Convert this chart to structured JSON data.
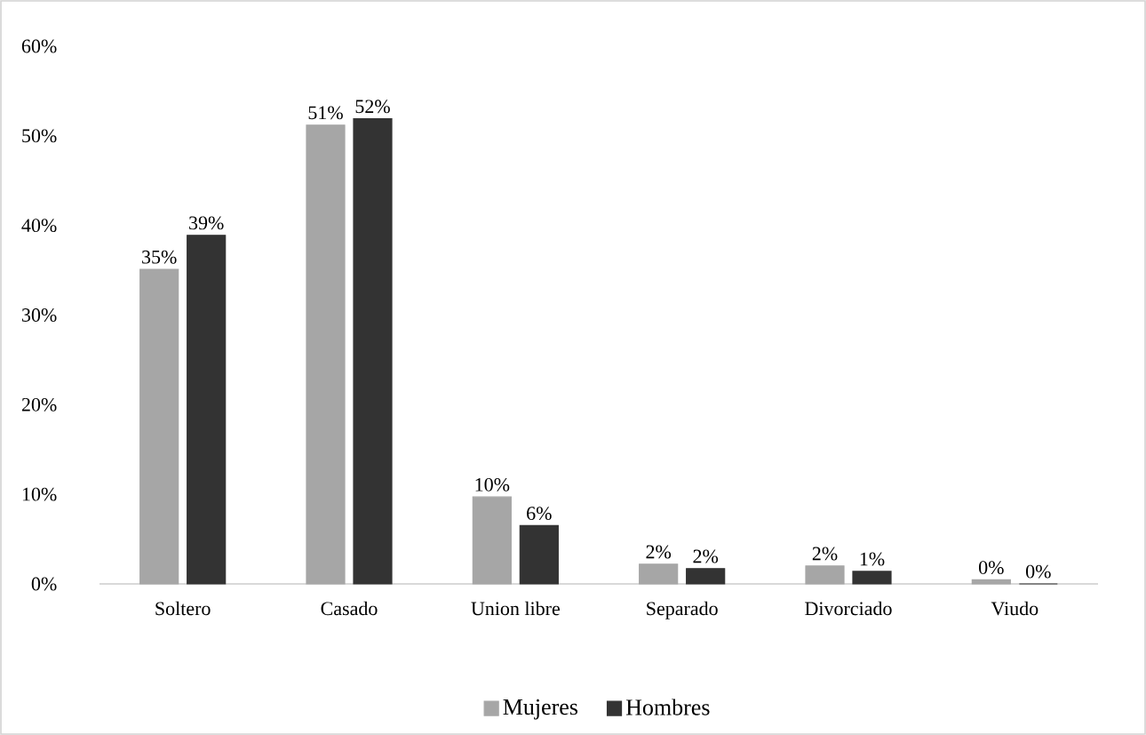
{
  "chart_data": {
    "type": "bar",
    "categories": [
      "Soltero",
      "Casado",
      "Union libre",
      "Separado",
      "Divorciado",
      "Viudo"
    ],
    "series": [
      {
        "name": "Mujeres",
        "color": "#a6a6a6",
        "values": [
          35.1,
          51.2,
          9.7,
          2.2,
          2.0,
          0.45
        ],
        "value_labels": [
          "35%",
          "51%",
          "10%",
          "2%",
          "2%",
          "0%"
        ]
      },
      {
        "name": "Hombres",
        "color": "#333333",
        "values": [
          38.9,
          51.9,
          6.5,
          1.7,
          1.4,
          0
        ],
        "value_labels": [
          "39%",
          "52%",
          "6%",
          "2%",
          "1%",
          "0%"
        ]
      }
    ],
    "ylim": [
      0,
      60
    ],
    "yticks": [
      {
        "value": 0,
        "label": "0%"
      },
      {
        "value": 10,
        "label": "10%"
      },
      {
        "value": 20,
        "label": "20%"
      },
      {
        "value": 30,
        "label": "30%"
      },
      {
        "value": 40,
        "label": "40%"
      },
      {
        "value": 50,
        "label": "50%"
      },
      {
        "value": 60,
        "label": "60%"
      }
    ],
    "grid": false,
    "legend": "bottom"
  }
}
